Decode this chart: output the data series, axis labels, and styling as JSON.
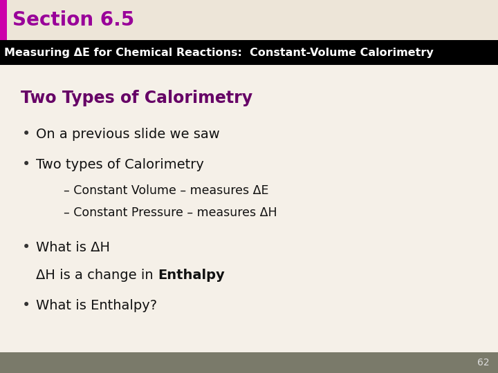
{
  "section_title": "Section 6.5",
  "section_title_color": "#990099",
  "header_bg_color": "#000000",
  "header_text": "Measuring ΔE for Chemical Reactions:  Constant-Volume Calorimetry",
  "header_text_color": "#ffffff",
  "slide_bg_color": "#f5f0e8",
  "top_bar_bg": "#ede5d8",
  "subtitle": "Two Types of Calorimetry",
  "subtitle_color": "#660066",
  "bullet1": "On a previous slide we saw",
  "bullet2": "Two types of Calorimetry",
  "sub1": "– Constant Volume – measures ΔE",
  "sub2": "– Constant Pressure – measures ΔH",
  "bullet3": "What is ΔH",
  "bullet4_pre": "ΔH is a change in ",
  "bullet4_bold": "Enthalpy",
  "bullet5": "What is Enthalpy?",
  "page_number": "62",
  "footer_bg_color": "#7a7a6a",
  "left_accent_color": "#cc00aa",
  "text_color": "#111111",
  "bullet_color": "#333333"
}
